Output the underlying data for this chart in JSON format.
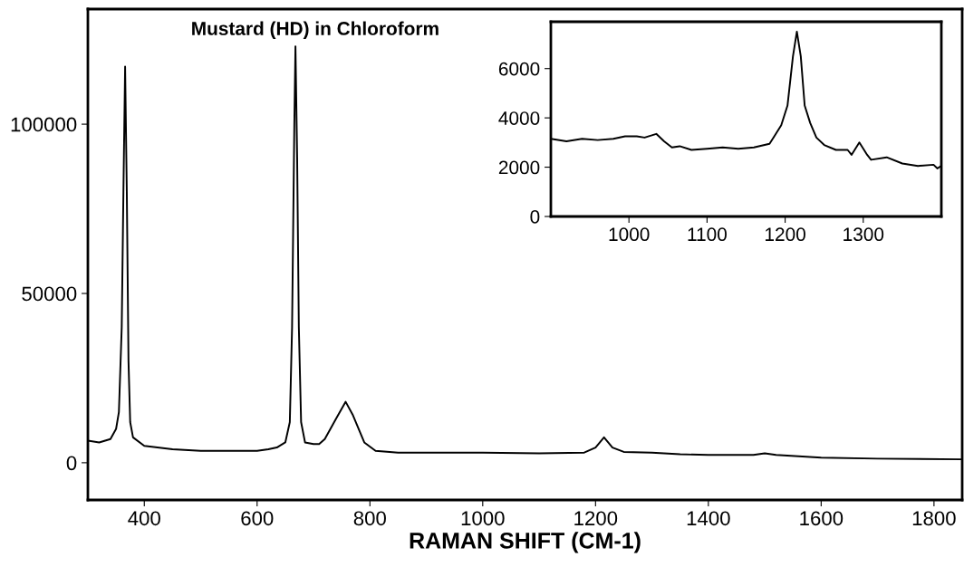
{
  "chart_data": [
    {
      "type": "line",
      "title": "Mustard (HD) in Chloroform",
      "xlabel": "RAMAN SHIFT (CM-1)",
      "xlim": [
        300,
        1850
      ],
      "xticks": [
        400,
        600,
        800,
        1000,
        1200,
        1400,
        1600,
        1800
      ],
      "ylim": [
        -11000,
        134000
      ],
      "yticks": [
        0,
        50000,
        100000
      ],
      "series": [
        {
          "color": "#000000",
          "x": [
            300,
            320,
            340,
            350,
            355,
            360,
            363,
            366,
            369,
            372,
            375,
            380,
            400,
            450,
            500,
            600,
            620,
            635,
            650,
            658,
            662,
            666,
            668,
            671,
            674,
            678,
            685,
            700,
            710,
            720,
            740,
            757,
            770,
            790,
            810,
            850,
            1000,
            1100,
            1180,
            1200,
            1215,
            1230,
            1250,
            1300,
            1350,
            1400,
            1480,
            1500,
            1520,
            1600,
            1700,
            1850
          ],
          "values": [
            6500,
            6000,
            7000,
            10000,
            15000,
            40000,
            80000,
            117000,
            80000,
            30000,
            12000,
            7500,
            5000,
            4000,
            3500,
            3500,
            4000,
            4500,
            6000,
            12000,
            40000,
            100000,
            123000,
            90000,
            40000,
            12000,
            6000,
            5500,
            5500,
            7000,
            13000,
            18000,
            14000,
            6000,
            3500,
            3000,
            3000,
            2800,
            3000,
            4500,
            7500,
            4500,
            3200,
            3000,
            2500,
            2300,
            2300,
            2800,
            2300,
            1500,
            1200,
            1000
          ]
        }
      ]
    },
    {
      "type": "line",
      "xlim": [
        900,
        1400
      ],
      "xticks": [
        1000,
        1100,
        1200,
        1300
      ],
      "ylim": [
        0,
        7900
      ],
      "yticks": [
        0,
        2000,
        4000,
        6000
      ],
      "series": [
        {
          "color": "#000000",
          "x": [
            900,
            920,
            940,
            960,
            980,
            995,
            1010,
            1020,
            1035,
            1045,
            1055,
            1065,
            1080,
            1100,
            1120,
            1140,
            1160,
            1180,
            1185,
            1195,
            1203,
            1210,
            1215,
            1220,
            1225,
            1232,
            1240,
            1250,
            1265,
            1280,
            1285,
            1295,
            1305,
            1310,
            1330,
            1350,
            1370,
            1390,
            1395,
            1400
          ],
          "values": [
            3150,
            3050,
            3150,
            3100,
            3150,
            3250,
            3250,
            3200,
            3350,
            3050,
            2800,
            2850,
            2700,
            2750,
            2800,
            2750,
            2800,
            2950,
            3200,
            3700,
            4500,
            6500,
            7500,
            6500,
            4500,
            3800,
            3200,
            2900,
            2700,
            2700,
            2500,
            3000,
            2500,
            2300,
            2400,
            2150,
            2050,
            2100,
            1950,
            2050
          ]
        }
      ]
    }
  ]
}
